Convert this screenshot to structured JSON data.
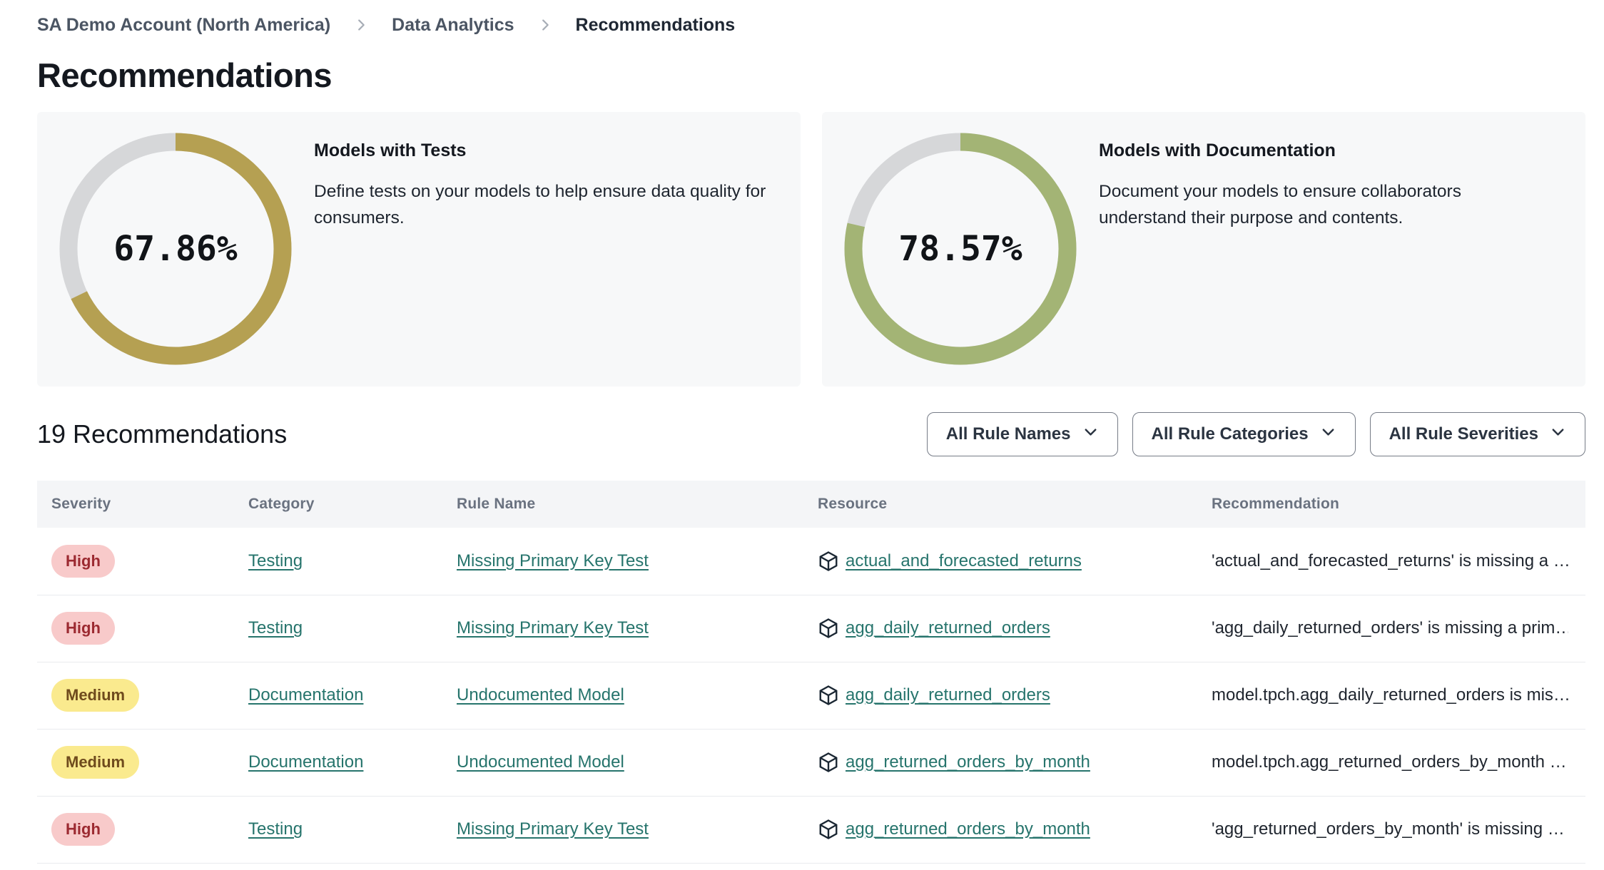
{
  "breadcrumb": {
    "items": [
      {
        "label": "SA Demo Account (North America)"
      },
      {
        "label": "Data Analytics"
      },
      {
        "label": "Recommendations"
      }
    ]
  },
  "page_title": "Recommendations",
  "chart_data": [
    {
      "type": "donut",
      "title": "Models with Tests",
      "description": "Define tests on your models to help ensure data quality for consumers.",
      "value_pct": 67.86,
      "label": "67.86%",
      "ring_color": "#b5a052",
      "track_color": "#d6d7d9"
    },
    {
      "type": "donut",
      "title": "Models with Documentation",
      "description": "Document your models to ensure collaborators understand their purpose and contents.",
      "value_pct": 78.57,
      "label": "78.57%",
      "ring_color": "#a3b475",
      "track_color": "#d6d7d9"
    }
  ],
  "list_header": {
    "count_label": "19 Recommendations",
    "filters": [
      {
        "label": "All Rule Names",
        "icon": "chevron-down-icon"
      },
      {
        "label": "All Rule Categories",
        "icon": "chevron-down-icon"
      },
      {
        "label": "All Rule Severities",
        "icon": "chevron-down-icon"
      }
    ]
  },
  "table": {
    "columns": [
      "Severity",
      "Category",
      "Rule Name",
      "Resource",
      "Recommendation"
    ],
    "rows": [
      {
        "severity": "High",
        "severity_level": "high",
        "category": "Testing",
        "rule_name": "Missing Primary Key Test",
        "resource": "actual_and_forecasted_returns",
        "resource_icon": "cube-icon",
        "recommendation": "'actual_and_forecasted_returns' is missing a …"
      },
      {
        "severity": "High",
        "severity_level": "high",
        "category": "Testing",
        "rule_name": "Missing Primary Key Test",
        "resource": "agg_daily_returned_orders",
        "resource_icon": "cube-icon",
        "recommendation": "'agg_daily_returned_orders' is missing a prim…"
      },
      {
        "severity": "Medium",
        "severity_level": "medium",
        "category": "Documentation",
        "rule_name": "Undocumented Model",
        "resource": "agg_daily_returned_orders",
        "resource_icon": "cube-icon",
        "recommendation": "model.tpch.agg_daily_returned_orders is mis…"
      },
      {
        "severity": "Medium",
        "severity_level": "medium",
        "category": "Documentation",
        "rule_name": "Undocumented Model",
        "resource": "agg_returned_orders_by_month",
        "resource_icon": "cube-icon",
        "recommendation": "model.tpch.agg_returned_orders_by_month …"
      },
      {
        "severity": "High",
        "severity_level": "high",
        "category": "Testing",
        "rule_name": "Missing Primary Key Test",
        "resource": "agg_returned_orders_by_month",
        "resource_icon": "cube-icon",
        "recommendation": "'agg_returned_orders_by_month' is missing …"
      }
    ]
  },
  "colors": {
    "tests_ring": "#b5a052",
    "docs_ring": "#a3b475",
    "donut_track": "#d6d7d9",
    "card_bg": "#f7f8f9",
    "link_teal": "#26746c",
    "badge_high_bg": "#f8caca",
    "badge_high_text": "#9c2a31",
    "badge_medium_bg": "#faea8e",
    "badge_medium_text": "#6f4b1d"
  }
}
